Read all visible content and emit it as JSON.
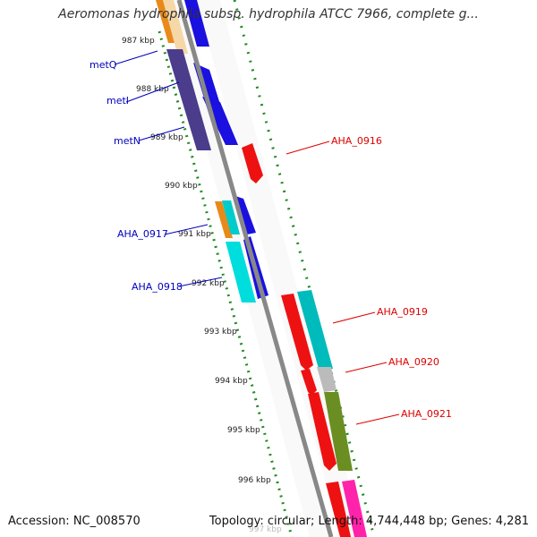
{
  "title": "Aeromonas hydrophila subsp. hydrophila ATCC 7966, complete g...",
  "footer": {
    "accession": "Accession: NC_008570",
    "topology": "Topology: circular; Length: 4,744,448 bp; Genes: 4,281"
  },
  "colors": {
    "backbone": "#888888",
    "tick_ring": "#228b22",
    "label_left": "#0000bb",
    "label_right": "#dd0000"
  },
  "ticks": [
    "987 kbp",
    "988 kbp",
    "989 kbp",
    "990 kbp",
    "991 kbp",
    "992 kbp",
    "993 kbp",
    "994 kbp",
    "995 kbp",
    "996 kbp",
    "997 kbp"
  ],
  "labels_left": [
    {
      "text": "metQ"
    },
    {
      "text": "metI"
    },
    {
      "text": "metN"
    },
    {
      "text": "AHA_0917"
    },
    {
      "text": "AHA_0918"
    }
  ],
  "labels_right": [
    {
      "text": "AHA_0916"
    },
    {
      "text": "AHA_0919"
    },
    {
      "text": "AHA_0920"
    },
    {
      "text": "AHA_0921"
    }
  ],
  "features": [
    {
      "name": "metQ-gene",
      "color": "#4b3c8c"
    },
    {
      "name": "metI-gene",
      "color": "#1a10e0"
    },
    {
      "name": "metN-gene",
      "color": "#1a10e0"
    },
    {
      "name": "AHA_0916-gene",
      "color": "#ee1111"
    },
    {
      "name": "AHA_0917-gene",
      "color": "#00cccc"
    },
    {
      "name": "AHA_0918-gene",
      "color": "#00dddd"
    },
    {
      "name": "AHA_0919-gene",
      "color": "#ee1111"
    },
    {
      "name": "AHA_0920-gene",
      "color": "#bbbbbb"
    },
    {
      "name": "AHA_0921-gene",
      "color": "#6b8e23"
    }
  ]
}
